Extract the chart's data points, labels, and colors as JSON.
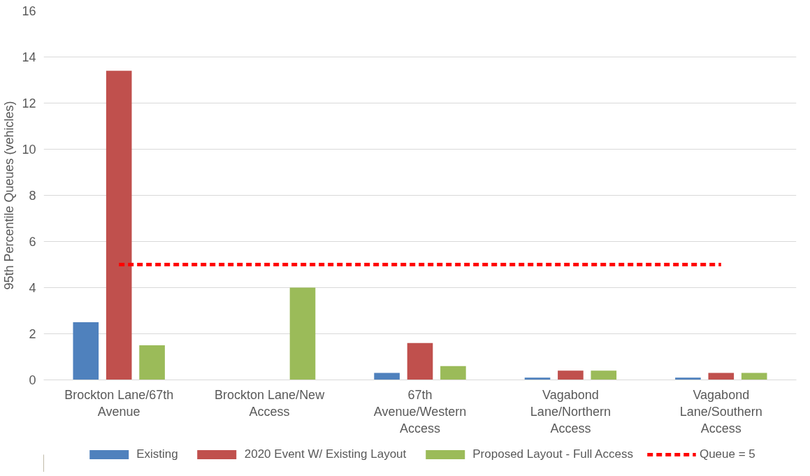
{
  "chart_data": {
    "type": "bar",
    "ylabel": "95th Percentile Queues (vehicles)",
    "categories": [
      "Brockton Lane/67th Avenue",
      "Brockton Lane/New Access",
      "67th Avenue/Western Access",
      "Vagabond Lane/Northern Access",
      "Vagabond Lane/Southern Access"
    ],
    "series": [
      {
        "name": "Existing",
        "color": "#4f81bd",
        "values": [
          2.5,
          null,
          0.3,
          0.1,
          0.1
        ]
      },
      {
        "name": "2020 Event W/ Existing Layout",
        "color": "#c0504d",
        "values": [
          13.4,
          null,
          1.6,
          0.4,
          0.3
        ]
      },
      {
        "name": "Proposed Layout - Full Access",
        "color": "#9bbb59",
        "values": [
          1.5,
          4.0,
          0.6,
          0.4,
          0.3
        ]
      },
      {
        "name": "Queue = 5",
        "color": "#ff0000",
        "type": "line",
        "line_style": "dashed",
        "values": [
          5,
          5,
          5,
          5,
          5
        ]
      }
    ],
    "ylim": [
      0,
      16
    ],
    "yticks": [
      0,
      2,
      4,
      6,
      8,
      10,
      12,
      14,
      16
    ],
    "grid": "y",
    "legend": "bottom"
  }
}
